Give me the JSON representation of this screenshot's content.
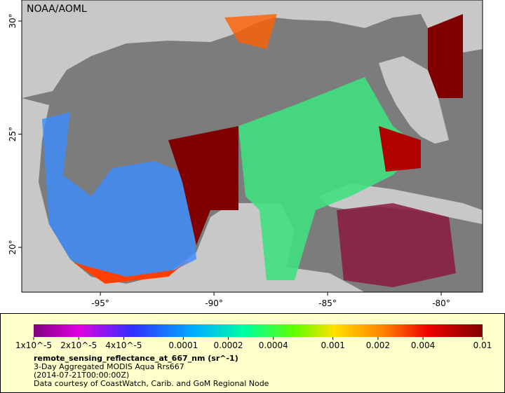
{
  "map": {
    "watermark": "NOAA/AOML",
    "lon_range": [
      -98.46,
      -78.18
    ],
    "lat_range": [
      18.02,
      30.93
    ],
    "lon_ticks": [
      {
        "value": -95,
        "label": "-95°"
      },
      {
        "value": -90,
        "label": "-90°"
      },
      {
        "value": -85,
        "label": "-85°"
      },
      {
        "value": -80,
        "label": "-80°"
      }
    ],
    "lat_ticks": [
      {
        "value": 20,
        "label": "20°"
      },
      {
        "value": 25,
        "label": "25°"
      },
      {
        "value": 30,
        "label": "30°"
      }
    ]
  },
  "colorbar": {
    "range": [
      1e-05,
      0.01
    ],
    "log_scale": true,
    "ticks": [
      {
        "value": 1e-05,
        "label": "1x10^-5"
      },
      {
        "value": 2e-05,
        "label": "2x10^-5"
      },
      {
        "value": 4e-05,
        "label": "4x10^-5"
      },
      0.0001,
      0.0002,
      0.0004,
      0.001,
      0.002,
      0.004,
      0.01
    ]
  },
  "caption": {
    "variable": "remote_sensing_reflectance_at_667_nm (sr^-1)",
    "lines": [
      "3-Day Aggregated MODIS Aqua Rrs667",
      "(2014-07-21T00:00:00Z)",
      "Data courtesy of CoastWatch, Carib. and GoM Regional Node"
    ]
  }
}
